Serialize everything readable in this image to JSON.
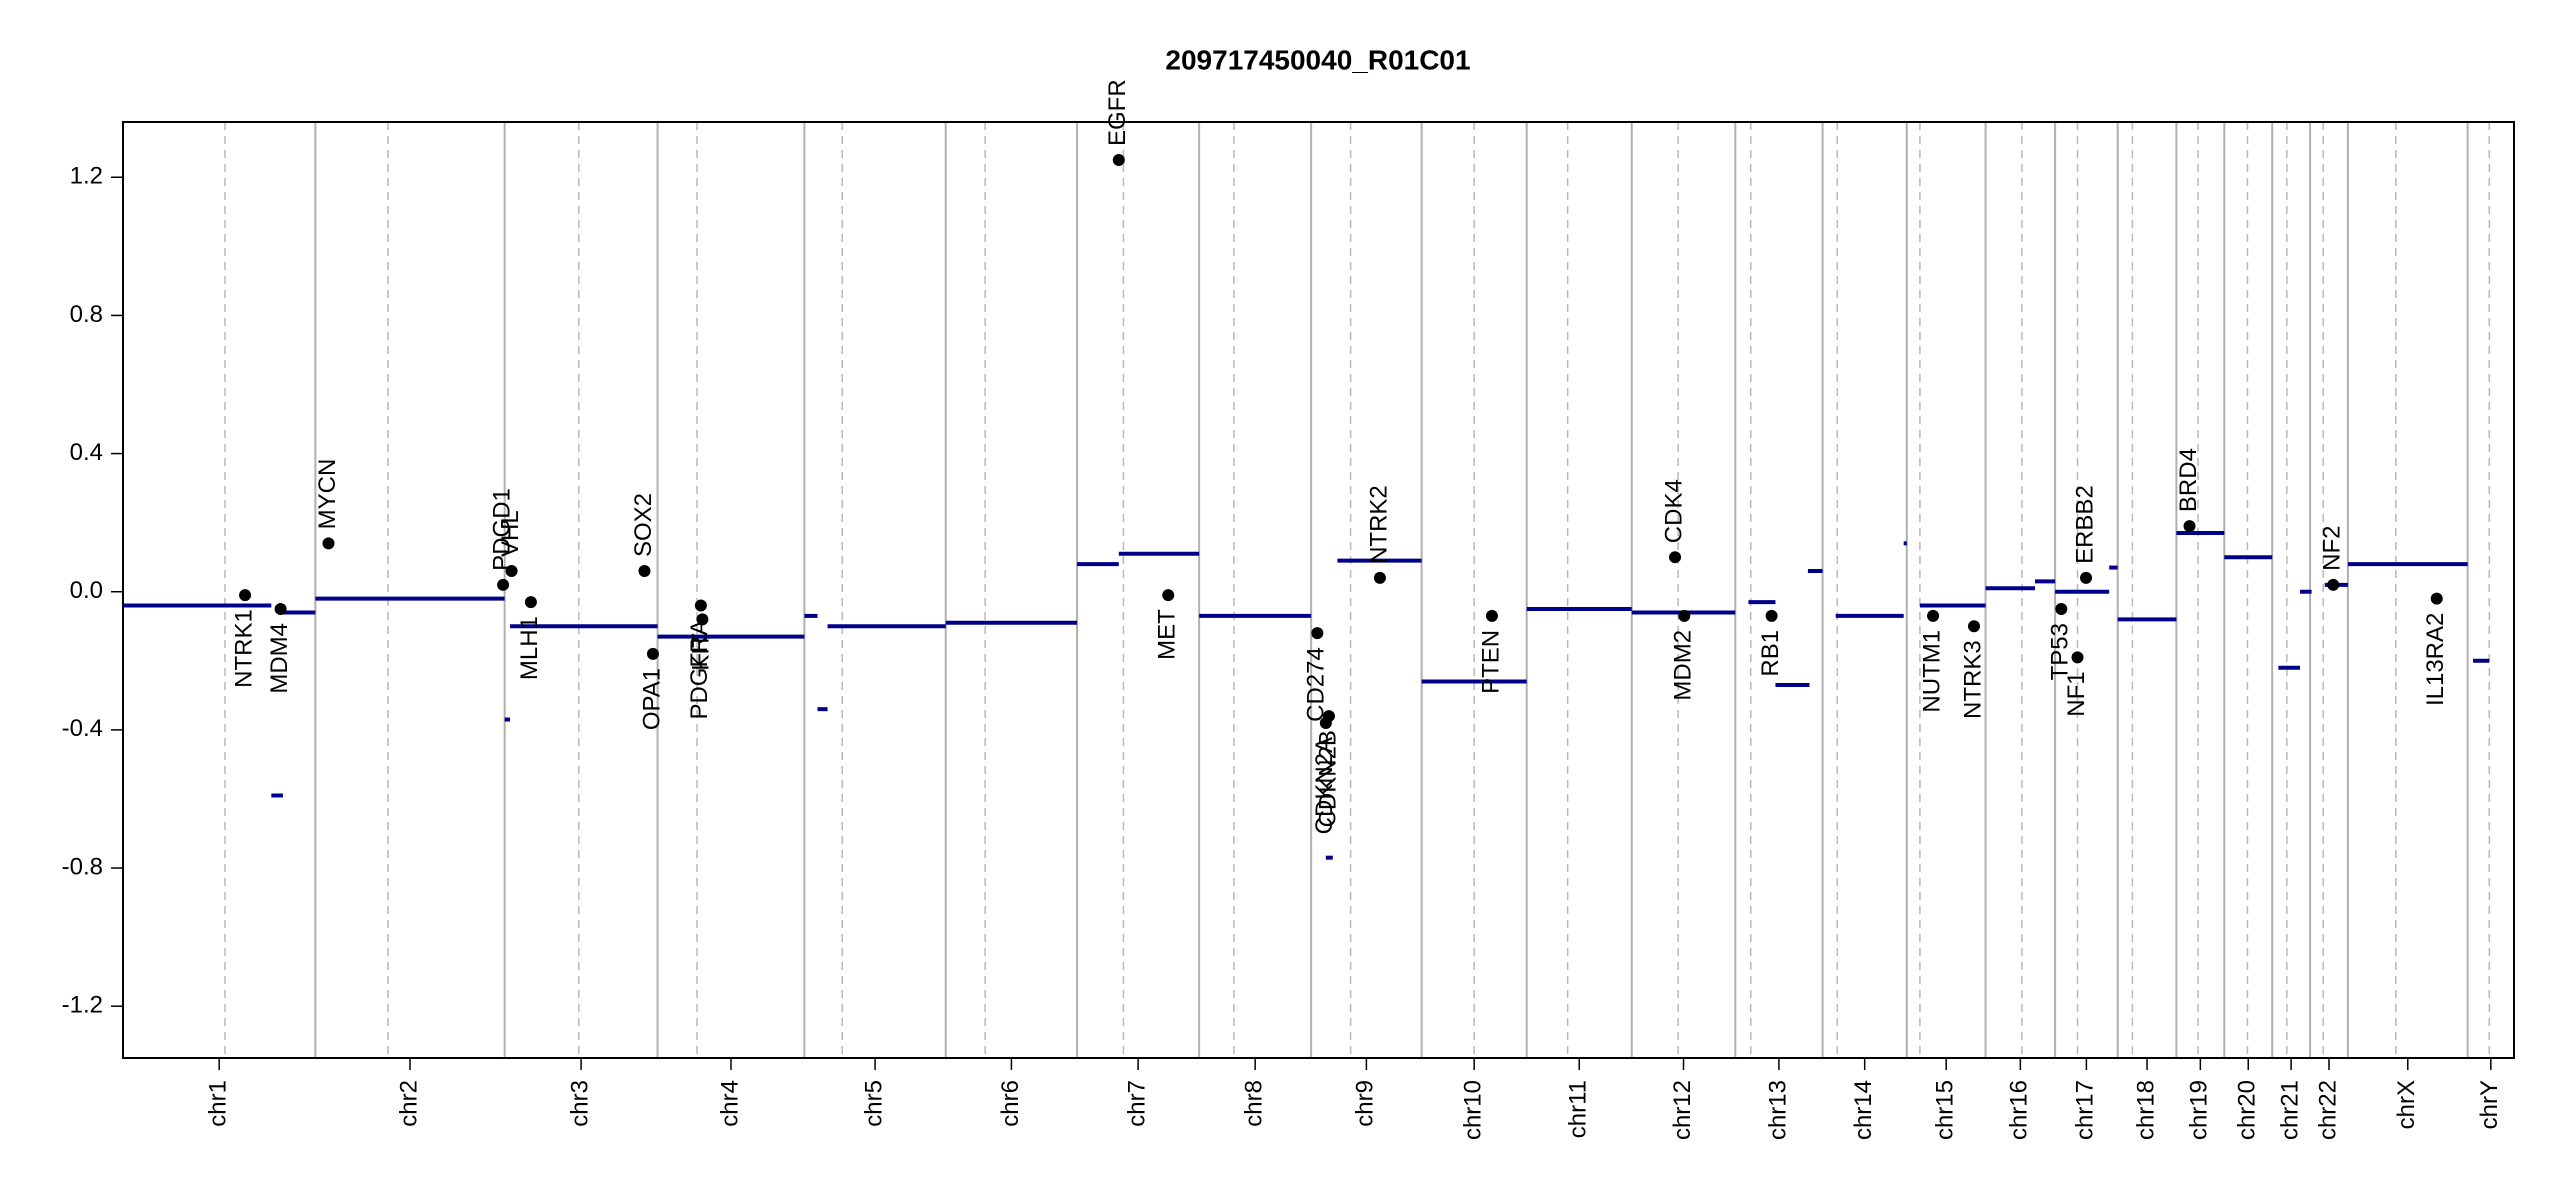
{
  "chart_data": {
    "type": "copy-number",
    "title": "209717450040_R01C01",
    "xlim": [
      0,
      3095
    ],
    "ylim": [
      -1.35,
      1.36
    ],
    "yticks": [
      1.2,
      0.8,
      0.4,
      {
        "value": 0,
        "label": "0.0"
      },
      -0.4,
      -0.8,
      -1.2
    ],
    "chromosomes": [
      {
        "name": "chr1",
        "start": 0,
        "end": 249
      },
      {
        "name": "chr2",
        "start": 249,
        "end": 494
      },
      {
        "name": "chr3",
        "start": 494,
        "end": 692
      },
      {
        "name": "chr4",
        "start": 692,
        "end": 882
      },
      {
        "name": "chr5",
        "start": 882,
        "end": 1065
      },
      {
        "name": "chr6",
        "start": 1065,
        "end": 1235
      },
      {
        "name": "chr7",
        "start": 1235,
        "end": 1393
      },
      {
        "name": "chr8",
        "start": 1393,
        "end": 1538
      },
      {
        "name": "chr9",
        "start": 1538,
        "end": 1681
      },
      {
        "name": "chr10",
        "start": 1681,
        "end": 1817
      },
      {
        "name": "chr11",
        "start": 1817,
        "end": 1953
      },
      {
        "name": "chr12",
        "start": 1953,
        "end": 2087
      },
      {
        "name": "chr13",
        "start": 2087,
        "end": 2200
      },
      {
        "name": "chr14",
        "start": 2200,
        "end": 2309
      },
      {
        "name": "chr15",
        "start": 2309,
        "end": 2411
      },
      {
        "name": "chr16",
        "start": 2411,
        "end": 2501
      },
      {
        "name": "chr17",
        "start": 2501,
        "end": 2582
      },
      {
        "name": "chr18",
        "start": 2582,
        "end": 2658
      },
      {
        "name": "chr19",
        "start": 2658,
        "end": 2720
      },
      {
        "name": "chr20",
        "start": 2720,
        "end": 2782
      },
      {
        "name": "chr21",
        "start": 2782,
        "end": 2831
      },
      {
        "name": "chr22",
        "start": 2831,
        "end": 2880
      },
      {
        "name": "chrX",
        "start": 2880,
        "end": 3035
      },
      {
        "name": "chrY",
        "start": 3035,
        "end": 3095
      }
    ],
    "centromeres": [
      132,
      343,
      590,
      743,
      931,
      1116,
      1295,
      1438,
      1589,
      1749,
      1870,
      2013,
      2107,
      2219,
      2326,
      2458,
      2530,
      2601,
      2686,
      2750,
      2801,
      2848,
      2942,
      3063
    ],
    "segment_color": "#00008b",
    "segments": [
      {
        "start": 0,
        "end": 192,
        "value": -0.04
      },
      {
        "start": 192,
        "end": 207,
        "value": -0.59
      },
      {
        "start": 207,
        "end": 249,
        "value": -0.06
      },
      {
        "start": 249,
        "end": 494,
        "value": -0.02
      },
      {
        "start": 494,
        "end": 501,
        "value": -0.37
      },
      {
        "start": 501,
        "end": 692,
        "value": -0.1
      },
      {
        "start": 692,
        "end": 882,
        "value": -0.13
      },
      {
        "start": 882,
        "end": 899,
        "value": -0.07
      },
      {
        "start": 899,
        "end": 912,
        "value": -0.34
      },
      {
        "start": 912,
        "end": 1065,
        "value": -0.1
      },
      {
        "start": 1065,
        "end": 1235,
        "value": -0.09
      },
      {
        "start": 1235,
        "end": 1289,
        "value": 0.08
      },
      {
        "start": 1289,
        "end": 1393,
        "value": 0.11
      },
      {
        "start": 1393,
        "end": 1538,
        "value": -0.07
      },
      {
        "start": 1557,
        "end": 1566,
        "value": -0.77
      },
      {
        "start": 1572,
        "end": 1681,
        "value": 0.09
      },
      {
        "start": 1681,
        "end": 1817,
        "value": -0.26
      },
      {
        "start": 1817,
        "end": 1953,
        "value": -0.05
      },
      {
        "start": 1953,
        "end": 2087,
        "value": -0.06
      },
      {
        "start": 2104,
        "end": 2139,
        "value": -0.03
      },
      {
        "start": 2139,
        "end": 2183,
        "value": -0.27
      },
      {
        "start": 2181,
        "end": 2200,
        "value": 0.06
      },
      {
        "start": 2217,
        "end": 2305,
        "value": -0.07
      },
      {
        "start": 2305,
        "end": 2309,
        "value": 0.14
      },
      {
        "start": 2326,
        "end": 2411,
        "value": -0.04
      },
      {
        "start": 2411,
        "end": 2475,
        "value": 0.01
      },
      {
        "start": 2475,
        "end": 2501,
        "value": 0.03
      },
      {
        "start": 2501,
        "end": 2571,
        "value": 0.0
      },
      {
        "start": 2571,
        "end": 2582,
        "value": 0.07
      },
      {
        "start": 2582,
        "end": 2658,
        "value": -0.08
      },
      {
        "start": 2658,
        "end": 2720,
        "value": 0.17
      },
      {
        "start": 2720,
        "end": 2782,
        "value": 0.1
      },
      {
        "start": 2790,
        "end": 2818,
        "value": -0.22
      },
      {
        "start": 2818,
        "end": 2833,
        "value": 0.0
      },
      {
        "start": 2850,
        "end": 2880,
        "value": 0.02
      },
      {
        "start": 2880,
        "end": 3035,
        "value": 0.08
      },
      {
        "start": 3042,
        "end": 3063,
        "value": -0.2
      }
    ],
    "genes": [
      {
        "name": "NTRK1",
        "pos": 158,
        "value": -0.01
      },
      {
        "name": "MDM4",
        "pos": 204,
        "value": -0.05
      },
      {
        "name": "MYCN",
        "pos": 266,
        "value": 0.14
      },
      {
        "name": "PDGD1",
        "pos": 492,
        "value": 0.02
      },
      {
        "name": "VHL",
        "pos": 503,
        "value": 0.06
      },
      {
        "name": "MLH1",
        "pos": 528,
        "value": -0.03
      },
      {
        "name": "SOX2",
        "pos": 675,
        "value": 0.06
      },
      {
        "name": "OPA1",
        "pos": 686,
        "value": -0.18
      },
      {
        "name": "PDGFRA",
        "pos": 748,
        "value": -0.04
      },
      {
        "name": "KIT",
        "pos": 750,
        "value": -0.08
      },
      {
        "name": "EGFR",
        "pos": 1289,
        "value": 1.25
      },
      {
        "name": "MET",
        "pos": 1353,
        "value": -0.01
      },
      {
        "name": "CD274",
        "pos": 1546,
        "value": -0.12
      },
      {
        "name": "CDKN2A",
        "pos": 1557,
        "value": -0.38
      },
      {
        "name": "CDKN2B",
        "pos": 1561,
        "value": -0.36
      },
      {
        "name": "NTRK2",
        "pos": 1627,
        "value": 0.04
      },
      {
        "name": "PTEN",
        "pos": 1772,
        "value": -0.07
      },
      {
        "name": "CDK4",
        "pos": 2009,
        "value": 0.1
      },
      {
        "name": "MDM2",
        "pos": 2021,
        "value": -0.07
      },
      {
        "name": "RB1",
        "pos": 2134,
        "value": -0.07
      },
      {
        "name": "NUTM1",
        "pos": 2343,
        "value": -0.07
      },
      {
        "name": "NTRK3",
        "pos": 2396,
        "value": -0.1
      },
      {
        "name": "TP53",
        "pos": 2509,
        "value": -0.05
      },
      {
        "name": "NF1",
        "pos": 2530,
        "value": -0.19
      },
      {
        "name": "ERBB2",
        "pos": 2541,
        "value": 0.04
      },
      {
        "name": "BRD4",
        "pos": 2675,
        "value": 0.19
      },
      {
        "name": "NF2",
        "pos": 2861,
        "value": 0.02
      },
      {
        "name": "IL13RA2",
        "pos": 2995,
        "value": -0.02
      }
    ]
  }
}
